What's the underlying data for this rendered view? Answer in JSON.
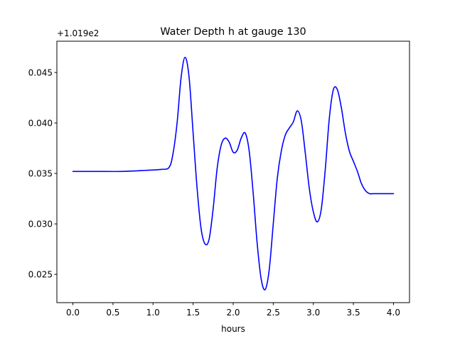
{
  "chart_data": {
    "type": "line",
    "title": "Water Depth h at gauge 130",
    "xlabel": "hours",
    "ylabel": "",
    "offset_label": "+1.019e2",
    "xlim": [
      -0.2,
      4.2
    ],
    "ylim": [
      0.0222,
      0.0481
    ],
    "xticks": [
      0.0,
      0.5,
      1.0,
      1.5,
      2.0,
      2.5,
      3.0,
      3.5,
      4.0
    ],
    "xtick_labels": [
      "0.0",
      "0.5",
      "1.0",
      "1.5",
      "2.0",
      "2.5",
      "3.0",
      "3.5",
      "4.0"
    ],
    "yticks": [
      0.025,
      0.03,
      0.035,
      0.04,
      0.045
    ],
    "ytick_labels": [
      "0.025",
      "0.030",
      "0.035",
      "0.040",
      "0.045"
    ],
    "grid": false,
    "line_color": "#0000ff",
    "series": [
      {
        "x": [
          0.0,
          0.3,
          0.6,
          0.9,
          1.1,
          1.2,
          1.25,
          1.3,
          1.35,
          1.4,
          1.45,
          1.5,
          1.55,
          1.6,
          1.65,
          1.7,
          1.75,
          1.8,
          1.85,
          1.9,
          1.95,
          2.0,
          2.05,
          2.1,
          2.15,
          2.2,
          2.25,
          2.3,
          2.35,
          2.4,
          2.45,
          2.5,
          2.55,
          2.6,
          2.65,
          2.7,
          2.75,
          2.8,
          2.85,
          2.9,
          2.95,
          3.0,
          3.05,
          3.1,
          3.15,
          3.2,
          3.25,
          3.3,
          3.35,
          3.4,
          3.45,
          3.5,
          3.55,
          3.6,
          3.65,
          3.7,
          3.75,
          3.8,
          3.85,
          3.9,
          3.95,
          4.0
        ],
        "y": [
          0.0352,
          0.0352,
          0.0352,
          0.0353,
          0.0354,
          0.0356,
          0.037,
          0.04,
          0.0445,
          0.0465,
          0.0445,
          0.039,
          0.0335,
          0.0295,
          0.028,
          0.0285,
          0.0315,
          0.0355,
          0.0378,
          0.0385,
          0.0381,
          0.0371,
          0.0373,
          0.0385,
          0.039,
          0.0372,
          0.033,
          0.028,
          0.0245,
          0.0235,
          0.0255,
          0.03,
          0.0345,
          0.0372,
          0.0388,
          0.0395,
          0.0401,
          0.0412,
          0.0402,
          0.037,
          0.0335,
          0.0312,
          0.0302,
          0.0315,
          0.0355,
          0.0405,
          0.0433,
          0.0433,
          0.0415,
          0.039,
          0.0372,
          0.0362,
          0.0352,
          0.034,
          0.0333,
          0.033,
          0.033,
          0.033,
          0.033,
          0.033,
          0.033,
          0.033
        ]
      }
    ]
  }
}
